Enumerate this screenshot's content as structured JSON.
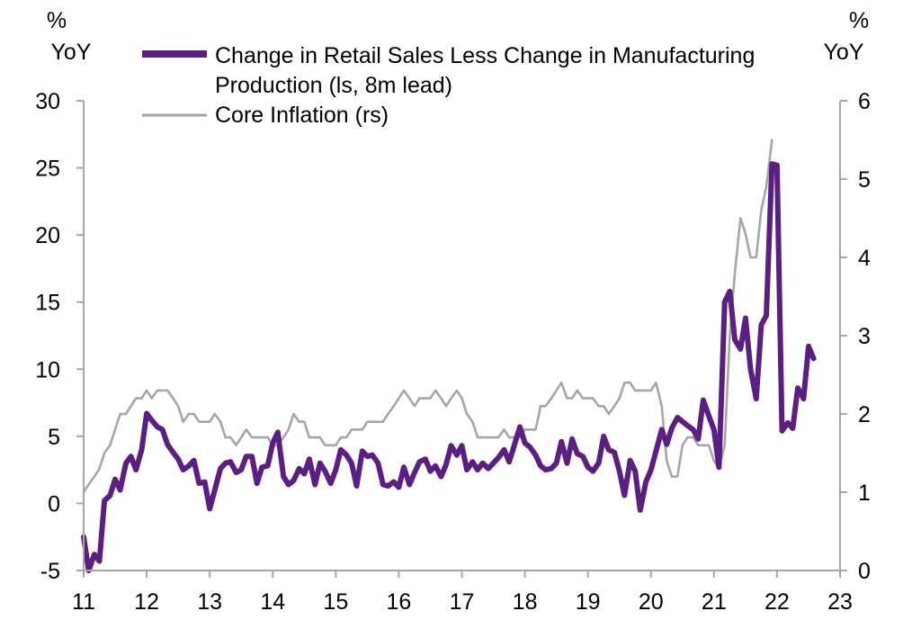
{
  "chart_data": {
    "type": "line",
    "left_axis": {
      "unit_line1": "%",
      "unit_line2": "YoY",
      "ylim": [
        -5,
        30
      ],
      "ticks": [
        -5,
        0,
        5,
        10,
        15,
        20,
        25,
        30
      ]
    },
    "right_axis": {
      "unit_line1": "%",
      "unit_line2": "YoY",
      "ylim": [
        0,
        6
      ],
      "ticks": [
        0,
        1,
        2,
        3,
        4,
        5,
        6
      ]
    },
    "x_axis": {
      "xlim": [
        2011,
        2023
      ],
      "tick_labels": [
        "11",
        "12",
        "13",
        "14",
        "15",
        "16",
        "17",
        "18",
        "19",
        "20",
        "21",
        "22",
        "23"
      ],
      "tick_values": [
        2011,
        2012,
        2013,
        2014,
        2015,
        2016,
        2017,
        2018,
        2019,
        2020,
        2021,
        2022,
        2023
      ]
    },
    "legend": {
      "placement": "top",
      "entries": [
        {
          "line1": "Change in Retail Sales Less Change in Manufacturing",
          "line2": "Production (ls, 8m lead)"
        },
        {
          "line1": "Core Inflation (rs)",
          "line2": ""
        }
      ]
    },
    "series": [
      {
        "name": "Change in Retail Sales Less Change in Manufacturing Production (ls, 8m lead)",
        "axis": "left",
        "color": "#5b1f82",
        "x": [
          2011.0,
          2011.08,
          2011.17,
          2011.25,
          2011.33,
          2011.42,
          2011.5,
          2011.58,
          2011.67,
          2011.75,
          2011.83,
          2011.92,
          2012.0,
          2012.08,
          2012.17,
          2012.25,
          2012.33,
          2012.42,
          2012.5,
          2012.58,
          2012.67,
          2012.75,
          2012.83,
          2012.92,
          2013.0,
          2013.08,
          2013.17,
          2013.25,
          2013.33,
          2013.42,
          2013.5,
          2013.58,
          2013.67,
          2013.75,
          2013.83,
          2013.92,
          2014.0,
          2014.08,
          2014.17,
          2014.25,
          2014.33,
          2014.42,
          2014.5,
          2014.58,
          2014.67,
          2014.75,
          2014.83,
          2014.92,
          2015.0,
          2015.08,
          2015.17,
          2015.25,
          2015.33,
          2015.42,
          2015.5,
          2015.58,
          2015.67,
          2015.75,
          2015.83,
          2015.92,
          2016.0,
          2016.08,
          2016.17,
          2016.25,
          2016.33,
          2016.42,
          2016.5,
          2016.58,
          2016.67,
          2016.75,
          2016.83,
          2016.92,
          2017.0,
          2017.08,
          2017.17,
          2017.25,
          2017.33,
          2017.42,
          2017.5,
          2017.58,
          2017.67,
          2017.75,
          2017.83,
          2017.92,
          2018.0,
          2018.08,
          2018.17,
          2018.25,
          2018.33,
          2018.42,
          2018.5,
          2018.58,
          2018.67,
          2018.75,
          2018.83,
          2018.92,
          2019.0,
          2019.08,
          2019.17,
          2019.25,
          2019.33,
          2019.42,
          2019.5,
          2019.58,
          2019.67,
          2019.75,
          2019.83,
          2019.92,
          2020.0,
          2020.08,
          2020.17,
          2020.25,
          2020.33,
          2020.42,
          2020.5,
          2020.58,
          2020.67,
          2020.75,
          2020.83,
          2020.92,
          2021.0,
          2021.08,
          2021.17,
          2021.25,
          2021.33,
          2021.42,
          2021.5,
          2021.58,
          2021.67,
          2021.75,
          2021.83,
          2021.92,
          2022.0,
          2022.08,
          2022.17,
          2022.25,
          2022.33,
          2022.42,
          2022.5,
          2022.58
        ],
        "y": [
          -2.5,
          -5.0,
          -3.8,
          -4.3,
          0.2,
          0.6,
          1.8,
          1.0,
          3.0,
          3.5,
          2.5,
          4.0,
          6.7,
          6.2,
          5.7,
          5.5,
          4.4,
          3.8,
          3.3,
          2.5,
          2.8,
          3.2,
          1.5,
          1.6,
          -0.4,
          1.0,
          2.6,
          3.0,
          3.1,
          2.3,
          2.5,
          3.5,
          3.5,
          1.5,
          2.7,
          2.8,
          4.5,
          5.3,
          2.0,
          1.4,
          1.7,
          2.6,
          2.2,
          3.3,
          1.4,
          3.0,
          2.4,
          1.5,
          2.5,
          4.0,
          3.6,
          3.0,
          1.3,
          3.9,
          3.5,
          3.6,
          3.0,
          1.4,
          1.3,
          1.6,
          1.2,
          2.7,
          1.4,
          2.3,
          3.1,
          3.3,
          2.4,
          2.8,
          2.0,
          2.9,
          4.3,
          3.6,
          4.3,
          2.5,
          3.1,
          2.5,
          3.0,
          2.6,
          3.0,
          3.4,
          4.0,
          3.1,
          4.3,
          5.7,
          4.5,
          4.2,
          3.6,
          2.8,
          2.5,
          2.6,
          3.0,
          4.6,
          3.0,
          4.8,
          3.7,
          3.5,
          2.7,
          2.4,
          3.0,
          5.0,
          4.0,
          3.8,
          2.4,
          0.6,
          3.2,
          2.4,
          -0.5,
          1.6,
          2.5,
          3.9,
          5.5,
          4.4,
          5.6,
          6.4,
          6.1,
          5.8,
          5.5,
          4.8,
          7.7,
          6.5,
          5.5,
          2.7,
          15.0,
          15.8,
          12.2,
          11.5,
          13.8,
          10.0,
          7.8,
          13.3,
          14.0,
          25.3,
          25.2,
          5.4,
          6.0,
          5.6,
          8.6,
          7.8,
          11.7,
          10.8
        ]
      },
      {
        "name": "Core Inflation (rs)",
        "axis": "right",
        "color": "#a6a6a6",
        "x": [
          2011.0,
          2011.08,
          2011.17,
          2011.25,
          2011.33,
          2011.42,
          2011.5,
          2011.58,
          2011.67,
          2011.75,
          2011.83,
          2011.92,
          2012.0,
          2012.08,
          2012.17,
          2012.25,
          2012.33,
          2012.42,
          2012.5,
          2012.58,
          2012.67,
          2012.75,
          2012.83,
          2012.92,
          2013.0,
          2013.08,
          2013.17,
          2013.25,
          2013.33,
          2013.42,
          2013.5,
          2013.58,
          2013.67,
          2013.75,
          2013.83,
          2013.92,
          2014.0,
          2014.08,
          2014.17,
          2014.25,
          2014.33,
          2014.42,
          2014.5,
          2014.58,
          2014.67,
          2014.75,
          2014.83,
          2014.92,
          2015.0,
          2015.08,
          2015.17,
          2015.25,
          2015.33,
          2015.42,
          2015.5,
          2015.58,
          2015.67,
          2015.75,
          2015.83,
          2015.92,
          2016.0,
          2016.08,
          2016.17,
          2016.25,
          2016.33,
          2016.42,
          2016.5,
          2016.58,
          2016.67,
          2016.75,
          2016.83,
          2016.92,
          2017.0,
          2017.08,
          2017.17,
          2017.25,
          2017.33,
          2017.42,
          2017.5,
          2017.58,
          2017.67,
          2017.75,
          2017.83,
          2017.92,
          2018.0,
          2018.08,
          2018.17,
          2018.25,
          2018.33,
          2018.42,
          2018.5,
          2018.58,
          2018.67,
          2018.75,
          2018.83,
          2018.92,
          2019.0,
          2019.08,
          2019.17,
          2019.25,
          2019.33,
          2019.42,
          2019.5,
          2019.58,
          2019.67,
          2019.75,
          2019.83,
          2019.92,
          2020.0,
          2020.08,
          2020.17,
          2020.25,
          2020.33,
          2020.42,
          2020.5,
          2020.58,
          2020.67,
          2020.75,
          2020.83,
          2020.92,
          2021.0,
          2021.08,
          2021.17,
          2021.25,
          2021.33,
          2021.42,
          2021.5,
          2021.58,
          2021.67,
          2021.75,
          2021.83,
          2021.92
        ],
        "y": [
          1.0,
          1.1,
          1.2,
          1.3,
          1.5,
          1.6,
          1.8,
          2.0,
          2.0,
          2.1,
          2.2,
          2.2,
          2.3,
          2.2,
          2.3,
          2.3,
          2.3,
          2.2,
          2.1,
          1.9,
          2.0,
          2.0,
          1.9,
          1.9,
          1.9,
          2.0,
          1.9,
          1.7,
          1.7,
          1.6,
          1.7,
          1.8,
          1.7,
          1.7,
          1.7,
          1.7,
          1.6,
          1.6,
          1.7,
          1.8,
          2.0,
          1.9,
          1.9,
          1.7,
          1.7,
          1.7,
          1.6,
          1.6,
          1.6,
          1.7,
          1.7,
          1.8,
          1.8,
          1.8,
          1.9,
          1.9,
          1.9,
          1.9,
          2.0,
          2.1,
          2.2,
          2.3,
          2.2,
          2.1,
          2.2,
          2.2,
          2.2,
          2.3,
          2.2,
          2.1,
          2.2,
          2.3,
          2.2,
          2.0,
          1.9,
          1.7,
          1.7,
          1.7,
          1.7,
          1.7,
          1.8,
          1.7,
          1.7,
          1.7,
          1.8,
          1.8,
          1.8,
          2.1,
          2.1,
          2.2,
          2.3,
          2.4,
          2.2,
          2.2,
          2.3,
          2.2,
          2.2,
          2.2,
          2.1,
          2.1,
          2.0,
          2.1,
          2.2,
          2.4,
          2.4,
          2.3,
          2.3,
          2.3,
          2.3,
          2.4,
          2.1,
          1.4,
          1.2,
          1.2,
          1.6,
          1.7,
          1.7,
          1.6,
          1.6,
          1.6,
          1.4,
          1.3,
          1.6,
          3.0,
          3.8,
          4.5,
          4.3,
          4.0,
          4.0,
          4.6,
          4.9,
          5.5
        ]
      }
    ]
  }
}
